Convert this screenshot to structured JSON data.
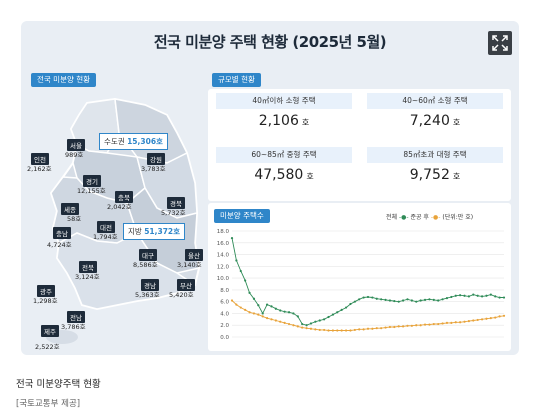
{
  "title": "전국 미분양 주택 현황 (2025년 5월)",
  "map_section": {
    "label": "전국 미분양 현황",
    "capital_area": {
      "name": "수도권",
      "value": "15,306호"
    },
    "local_area": {
      "name": "지방",
      "value": "51,372호"
    },
    "regions": [
      {
        "name": "서울",
        "value": "989호"
      },
      {
        "name": "인천",
        "value": "2,162호"
      },
      {
        "name": "경기",
        "value": "12,155호"
      },
      {
        "name": "강원",
        "value": "3,783호"
      },
      {
        "name": "충북",
        "value": "2,042호"
      },
      {
        "name": "경북",
        "value": "5,732호"
      },
      {
        "name": "세종",
        "value": "58호"
      },
      {
        "name": "대전",
        "value": "1,794호"
      },
      {
        "name": "충남",
        "value": "4,724호"
      },
      {
        "name": "대구",
        "value": "8,586호"
      },
      {
        "name": "울산",
        "value": "3,140호"
      },
      {
        "name": "전북",
        "value": "3,124호"
      },
      {
        "name": "경남",
        "value": "5,363호"
      },
      {
        "name": "부산",
        "value": "5,420호"
      },
      {
        "name": "광주",
        "value": "1,298호"
      },
      {
        "name": "전남",
        "value": "3,786호"
      },
      {
        "name": "제주",
        "value": "2,522호"
      }
    ]
  },
  "size_section": {
    "label": "규모별 현황",
    "unit": "호",
    "items": [
      {
        "label": "40㎡이하 소형 주택",
        "value": "2,106"
      },
      {
        "label": "40~60㎡ 소형 주택",
        "value": "7,240"
      },
      {
        "label": "60~85㎡ 중형 주택",
        "value": "47,580"
      },
      {
        "label": "85㎡초과 대형 주택",
        "value": "9,752"
      }
    ]
  },
  "chart_section": {
    "label": "미분양 주택수",
    "legend_total": "전체",
    "legend_completed": "준공 후",
    "unit_note": "(단위:만 호)"
  },
  "colors": {
    "total": "#2e8b57",
    "completed": "#e8a33a",
    "accent": "#2f86c9",
    "dark": "#1e2b3a"
  },
  "chart_data": {
    "type": "line",
    "ylim": [
      0,
      18
    ],
    "yticks": [
      "0.0",
      "2.0",
      "4.0",
      "6.0",
      "8.0",
      "10.0",
      "12.0",
      "14.0",
      "16.0",
      "18.0"
    ],
    "series": [
      {
        "name": "전체",
        "values": [
          16.8,
          13.0,
          11.2,
          9.6,
          7.5,
          6.5,
          5.4,
          4.0,
          5.5,
          5.2,
          4.8,
          4.5,
          4.3,
          4.2,
          4.0,
          3.5,
          2.2,
          2.0,
          2.3,
          2.6,
          2.8,
          3.0,
          3.4,
          3.8,
          4.2,
          4.6,
          5.0,
          5.6,
          6.0,
          6.4,
          6.7,
          6.8,
          6.7,
          6.5,
          6.4,
          6.3,
          6.2,
          6.1,
          6.0,
          6.2,
          6.4,
          6.2,
          6.0,
          6.2,
          6.3,
          6.4,
          6.3,
          6.2,
          6.4,
          6.6,
          6.8,
          7.0,
          7.1,
          7.0,
          6.9,
          7.2,
          7.0,
          6.9,
          7.0,
          7.2,
          6.9,
          6.7,
          6.7
        ]
      },
      {
        "name": "준공 후",
        "values": [
          6.2,
          5.5,
          5.0,
          4.6,
          4.2,
          4.0,
          3.8,
          3.5,
          3.2,
          3.0,
          2.8,
          2.6,
          2.4,
          2.2,
          2.0,
          1.8,
          1.6,
          1.5,
          1.4,
          1.3,
          1.2,
          1.2,
          1.1,
          1.1,
          1.1,
          1.1,
          1.1,
          1.1,
          1.2,
          1.3,
          1.3,
          1.4,
          1.4,
          1.5,
          1.5,
          1.6,
          1.7,
          1.7,
          1.8,
          1.8,
          1.9,
          1.9,
          2.0,
          2.0,
          2.1,
          2.1,
          2.2,
          2.2,
          2.3,
          2.4,
          2.4,
          2.5,
          2.5,
          2.6,
          2.7,
          2.8,
          2.9,
          3.0,
          3.1,
          3.2,
          3.3,
          3.5,
          3.6
        ]
      }
    ]
  },
  "caption": "전국 미분양주택 현황",
  "credit": "[국토교통부 제공]"
}
